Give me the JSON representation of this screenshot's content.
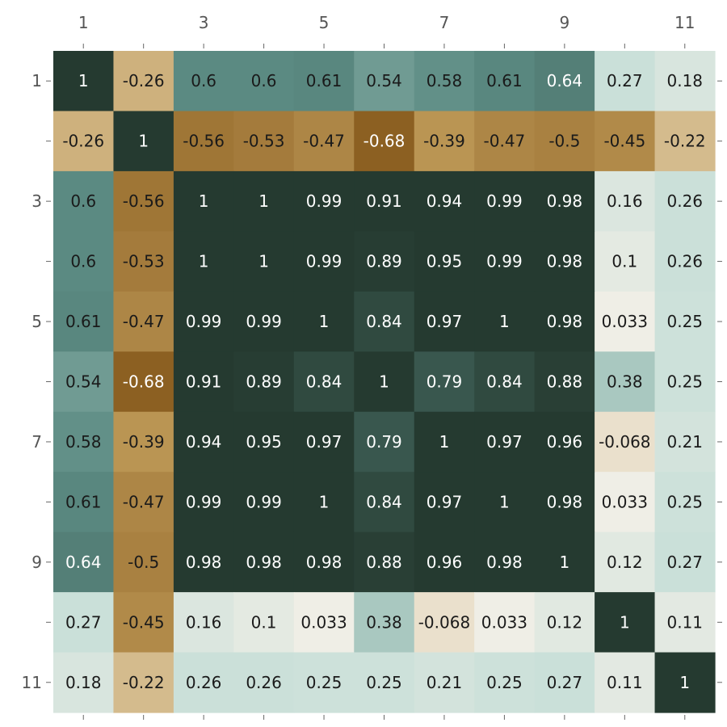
{
  "chart_data": {
    "type": "heatmap",
    "title": "",
    "xlabel": "",
    "ylabel": "",
    "rows": 11,
    "cols": 11,
    "x_tick_labels": [
      "1",
      "",
      "3",
      "",
      "5",
      "",
      "7",
      "",
      "9",
      "",
      "11"
    ],
    "y_tick_labels": [
      "1",
      "",
      "3",
      "",
      "5",
      "",
      "7",
      "",
      "9",
      "",
      "11"
    ],
    "value_range": [
      -0.68,
      1
    ],
    "colorscale": {
      "negative_max": "#8c6022",
      "negative_mid": "#c29e5c",
      "zero": "#f4f0e8",
      "positive_low": "#c5ded7",
      "positive_mid": "#5b8a82",
      "positive_max": "#253a30"
    },
    "values": [
      [
        1,
        -0.26,
        0.6,
        0.6,
        0.61,
        0.54,
        0.58,
        0.61,
        0.64,
        0.27,
        0.18
      ],
      [
        -0.26,
        1,
        -0.56,
        -0.53,
        -0.47,
        -0.68,
        -0.39,
        -0.47,
        -0.5,
        -0.45,
        -0.22
      ],
      [
        0.6,
        -0.56,
        1,
        1,
        0.99,
        0.91,
        0.94,
        0.99,
        0.98,
        0.16,
        0.26
      ],
      [
        0.6,
        -0.53,
        1,
        1,
        0.99,
        0.89,
        0.95,
        0.99,
        0.98,
        0.1,
        0.26
      ],
      [
        0.61,
        -0.47,
        0.99,
        0.99,
        1,
        0.84,
        0.97,
        1,
        0.98,
        0.033,
        0.25
      ],
      [
        0.54,
        -0.68,
        0.91,
        0.89,
        0.84,
        1,
        0.79,
        0.84,
        0.88,
        0.38,
        0.25
      ],
      [
        0.58,
        -0.39,
        0.94,
        0.95,
        0.97,
        0.79,
        1,
        0.97,
        0.96,
        -0.068,
        0.21
      ],
      [
        0.61,
        -0.47,
        0.99,
        0.99,
        1,
        0.84,
        0.97,
        1,
        0.98,
        0.033,
        0.25
      ],
      [
        0.64,
        -0.5,
        0.98,
        0.98,
        0.98,
        0.88,
        0.96,
        0.98,
        1,
        0.12,
        0.27
      ],
      [
        0.27,
        -0.45,
        0.16,
        0.1,
        0.033,
        0.38,
        -0.068,
        0.033,
        0.12,
        1,
        0.11
      ],
      [
        0.18,
        -0.22,
        0.26,
        0.26,
        0.25,
        0.25,
        0.21,
        0.25,
        0.27,
        0.11,
        1
      ]
    ],
    "grid": false,
    "legend": "none"
  }
}
